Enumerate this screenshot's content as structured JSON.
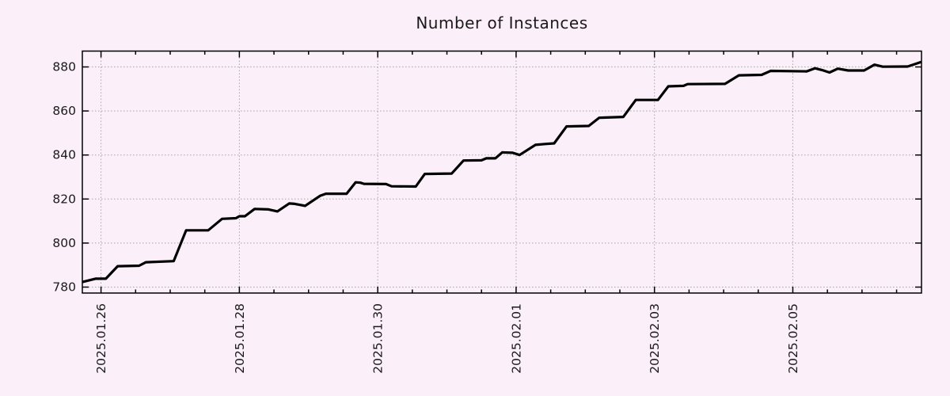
{
  "chart_data": {
    "type": "line",
    "title": "Number of Instances",
    "colors": {
      "background": "#fbeff9",
      "line": "#000000",
      "grid": "#a6a6a6",
      "border": "#000000",
      "text": "#1a1a1a"
    },
    "grid": true,
    "legend": "none",
    "x_axis": {
      "label": "",
      "tick_labels": [
        "2025.01.26",
        "2025.01.28",
        "2025.01.30",
        "2025.02.01",
        "2025.02.03",
        "2025.02.05"
      ],
      "tick_days": [
        0,
        2,
        4,
        6,
        8,
        10
      ],
      "minor_tick_interval_days": 0.5,
      "range_days": [
        -0.27,
        11.86
      ]
    },
    "y_axis": {
      "label": "",
      "ticks": [
        780,
        800,
        820,
        840,
        860,
        880
      ],
      "range": [
        777.3,
        887.2
      ]
    },
    "series": [
      {
        "name": "instances",
        "x_unit": "days_since_2025.01.26",
        "points": [
          [
            -0.27,
            782.3
          ],
          [
            -0.08,
            783.8
          ],
          [
            0.07,
            783.8
          ],
          [
            0.24,
            789.5
          ],
          [
            0.55,
            789.7
          ],
          [
            0.65,
            791.3
          ],
          [
            1.05,
            791.8
          ],
          [
            1.23,
            805.8
          ],
          [
            1.55,
            805.8
          ],
          [
            1.75,
            811.0
          ],
          [
            1.95,
            811.3
          ],
          [
            2.0,
            812.2
          ],
          [
            2.08,
            812.2
          ],
          [
            2.22,
            815.5
          ],
          [
            2.42,
            815.3
          ],
          [
            2.55,
            814.4
          ],
          [
            2.72,
            818.0
          ],
          [
            2.8,
            817.8
          ],
          [
            2.95,
            816.9
          ],
          [
            3.17,
            821.5
          ],
          [
            3.25,
            822.4
          ],
          [
            3.55,
            822.4
          ],
          [
            3.68,
            827.6
          ],
          [
            3.75,
            827.4
          ],
          [
            3.8,
            826.9
          ],
          [
            4.12,
            826.8
          ],
          [
            4.2,
            825.8
          ],
          [
            4.55,
            825.7
          ],
          [
            4.68,
            831.4
          ],
          [
            5.07,
            831.6
          ],
          [
            5.24,
            837.5
          ],
          [
            5.5,
            837.6
          ],
          [
            5.57,
            838.5
          ],
          [
            5.7,
            838.5
          ],
          [
            5.8,
            841.2
          ],
          [
            5.95,
            841.0
          ],
          [
            6.05,
            840.0
          ],
          [
            6.28,
            844.6
          ],
          [
            6.42,
            845.0
          ],
          [
            6.55,
            845.3
          ],
          [
            6.73,
            853.0
          ],
          [
            7.05,
            853.2
          ],
          [
            7.2,
            856.9
          ],
          [
            7.55,
            857.3
          ],
          [
            7.73,
            865.0
          ],
          [
            8.05,
            865.0
          ],
          [
            8.2,
            871.2
          ],
          [
            8.42,
            871.4
          ],
          [
            8.48,
            872.2
          ],
          [
            9.02,
            872.3
          ],
          [
            9.22,
            876.2
          ],
          [
            9.55,
            876.4
          ],
          [
            9.68,
            878.2
          ],
          [
            10.2,
            878.0
          ],
          [
            10.32,
            879.4
          ],
          [
            10.42,
            878.6
          ],
          [
            10.53,
            877.5
          ],
          [
            10.65,
            879.2
          ],
          [
            10.8,
            878.4
          ],
          [
            11.03,
            878.4
          ],
          [
            11.18,
            881.0
          ],
          [
            11.3,
            880.1
          ],
          [
            11.66,
            880.2
          ],
          [
            11.86,
            882.3
          ]
        ]
      }
    ]
  }
}
